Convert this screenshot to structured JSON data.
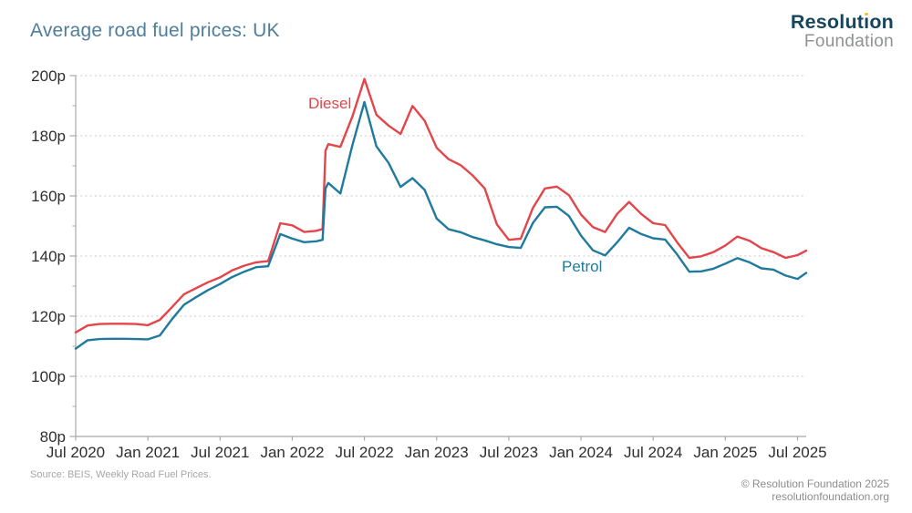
{
  "header": {
    "title": "Average road fuel prices: UK",
    "logo": {
      "name": "Resolution Foundation",
      "line1_parts": [
        "Resolut",
        "ı",
        "on"
      ],
      "line2": "Foundation"
    }
  },
  "footer": {
    "source": "Source: BEIS, Weekly Road Fuel Prices.",
    "copyright": "© Resolution Foundation 2025",
    "website": "resolutionfoundation.org"
  },
  "colors": {
    "title": "#4e7e9b",
    "logo_text": "#17455b",
    "logo_accent": "#f2c029",
    "foundation_text": "#8f9193",
    "diesel_line": "#e4454a",
    "petrol_line": "#1f7a9d",
    "axis": "#a8a8a8",
    "gridline": "#c9c9c9",
    "tick_label": "#2e2e2e",
    "source_text": "#a6a6a6",
    "credit_text": "#8c8c8c"
  },
  "chart_data": {
    "type": "line",
    "title": "Average road fuel prices: UK",
    "xlabel": "",
    "ylabel": "",
    "grid": "horizontal-dashed",
    "legend_position": "inline-labels",
    "x_axis": {
      "range": [
        2020.5,
        2025.56
      ],
      "ticks": [
        2020.5,
        2021.0,
        2021.5,
        2022.0,
        2022.5,
        2023.0,
        2023.5,
        2024.0,
        2024.5,
        2025.0,
        2025.5
      ],
      "tick_labels": [
        "Jul 2020",
        "Jan 2021",
        "Jul 2021",
        "Jan 2022",
        "Jul 2022",
        "Jan 2023",
        "Jul 2023",
        "Jan 2024",
        "Jul 2024",
        "Jan 2025",
        "Jul 2025"
      ]
    },
    "y_axis": {
      "range": [
        80,
        200
      ],
      "ticks": [
        80,
        100,
        120,
        140,
        160,
        180,
        200
      ],
      "tick_labels": [
        "80p",
        "100p",
        "120p",
        "140p",
        "160p",
        "180p",
        "200p"
      ],
      "minor_ticks": [
        90,
        110,
        130,
        150,
        170,
        190
      ]
    },
    "series": [
      {
        "name": "Diesel",
        "color": "#e4454a",
        "points": [
          [
            2020.5,
            114.6
          ],
          [
            2020.583,
            116.9
          ],
          [
            2020.667,
            117.4
          ],
          [
            2020.75,
            117.5
          ],
          [
            2020.833,
            117.5
          ],
          [
            2020.917,
            117.4
          ],
          [
            2021.0,
            117.0
          ],
          [
            2021.083,
            118.8
          ],
          [
            2021.167,
            123.0
          ],
          [
            2021.25,
            127.3
          ],
          [
            2021.333,
            129.3
          ],
          [
            2021.417,
            131.3
          ],
          [
            2021.5,
            132.9
          ],
          [
            2021.583,
            135.2
          ],
          [
            2021.667,
            136.8
          ],
          [
            2021.75,
            137.9
          ],
          [
            2021.833,
            138.3
          ],
          [
            2021.917,
            150.9
          ],
          [
            2022.0,
            150.2
          ],
          [
            2022.083,
            148.0
          ],
          [
            2022.167,
            148.4
          ],
          [
            2022.21,
            149.0
          ],
          [
            2022.23,
            175.0
          ],
          [
            2022.25,
            177.2
          ],
          [
            2022.333,
            176.3
          ],
          [
            2022.417,
            186.5
          ],
          [
            2022.5,
            198.9
          ],
          [
            2022.583,
            187.0
          ],
          [
            2022.667,
            183.4
          ],
          [
            2022.75,
            180.6
          ],
          [
            2022.833,
            189.9
          ],
          [
            2022.917,
            185.0
          ],
          [
            2023.0,
            176.0
          ],
          [
            2023.083,
            172.2
          ],
          [
            2023.167,
            170.2
          ],
          [
            2023.25,
            166.8
          ],
          [
            2023.333,
            162.5
          ],
          [
            2023.417,
            150.5
          ],
          [
            2023.5,
            145.4
          ],
          [
            2023.583,
            145.8
          ],
          [
            2023.667,
            156.0
          ],
          [
            2023.75,
            162.5
          ],
          [
            2023.833,
            163.1
          ],
          [
            2023.917,
            160.2
          ],
          [
            2024.0,
            153.8
          ],
          [
            2024.083,
            149.6
          ],
          [
            2024.167,
            148.0
          ],
          [
            2024.25,
            154.0
          ],
          [
            2024.333,
            158.0
          ],
          [
            2024.417,
            154.0
          ],
          [
            2024.5,
            150.9
          ],
          [
            2024.583,
            150.3
          ],
          [
            2024.667,
            144.5
          ],
          [
            2024.75,
            139.4
          ],
          [
            2024.833,
            139.9
          ],
          [
            2024.917,
            141.3
          ],
          [
            2025.0,
            143.5
          ],
          [
            2025.083,
            146.5
          ],
          [
            2025.167,
            145.1
          ],
          [
            2025.25,
            142.6
          ],
          [
            2025.333,
            141.3
          ],
          [
            2025.417,
            139.4
          ],
          [
            2025.5,
            140.3
          ],
          [
            2025.56,
            141.8
          ]
        ]
      },
      {
        "name": "Petrol",
        "color": "#1f7a9d",
        "points": [
          [
            2020.5,
            109.2
          ],
          [
            2020.583,
            112.0
          ],
          [
            2020.667,
            112.4
          ],
          [
            2020.75,
            112.5
          ],
          [
            2020.833,
            112.5
          ],
          [
            2020.917,
            112.4
          ],
          [
            2021.0,
            112.3
          ],
          [
            2021.083,
            113.6
          ],
          [
            2021.167,
            119.0
          ],
          [
            2021.25,
            123.8
          ],
          [
            2021.333,
            126.3
          ],
          [
            2021.417,
            128.7
          ],
          [
            2021.5,
            130.7
          ],
          [
            2021.583,
            133.0
          ],
          [
            2021.667,
            134.8
          ],
          [
            2021.75,
            136.3
          ],
          [
            2021.833,
            136.6
          ],
          [
            2021.917,
            147.3
          ],
          [
            2022.0,
            145.8
          ],
          [
            2022.083,
            144.6
          ],
          [
            2022.167,
            144.9
          ],
          [
            2022.21,
            145.4
          ],
          [
            2022.23,
            162.5
          ],
          [
            2022.25,
            164.3
          ],
          [
            2022.333,
            160.8
          ],
          [
            2022.417,
            177.0
          ],
          [
            2022.5,
            191.2
          ],
          [
            2022.583,
            176.5
          ],
          [
            2022.667,
            171.0
          ],
          [
            2022.75,
            163.0
          ],
          [
            2022.833,
            165.9
          ],
          [
            2022.917,
            162.0
          ],
          [
            2023.0,
            152.5
          ],
          [
            2023.083,
            148.9
          ],
          [
            2023.167,
            147.9
          ],
          [
            2023.25,
            146.3
          ],
          [
            2023.333,
            145.2
          ],
          [
            2023.417,
            143.9
          ],
          [
            2023.5,
            143.0
          ],
          [
            2023.583,
            142.7
          ],
          [
            2023.667,
            151.0
          ],
          [
            2023.75,
            156.2
          ],
          [
            2023.833,
            156.4
          ],
          [
            2023.917,
            153.3
          ],
          [
            2024.0,
            146.8
          ],
          [
            2024.083,
            141.9
          ],
          [
            2024.167,
            140.2
          ],
          [
            2024.25,
            144.5
          ],
          [
            2024.333,
            149.4
          ],
          [
            2024.417,
            147.3
          ],
          [
            2024.5,
            145.9
          ],
          [
            2024.583,
            145.5
          ],
          [
            2024.667,
            140.5
          ],
          [
            2024.75,
            134.8
          ],
          [
            2024.833,
            134.9
          ],
          [
            2024.917,
            135.8
          ],
          [
            2025.0,
            137.5
          ],
          [
            2025.083,
            139.3
          ],
          [
            2025.167,
            137.9
          ],
          [
            2025.25,
            135.9
          ],
          [
            2025.333,
            135.5
          ],
          [
            2025.417,
            133.5
          ],
          [
            2025.5,
            132.4
          ],
          [
            2025.56,
            134.4
          ]
        ]
      }
    ]
  }
}
